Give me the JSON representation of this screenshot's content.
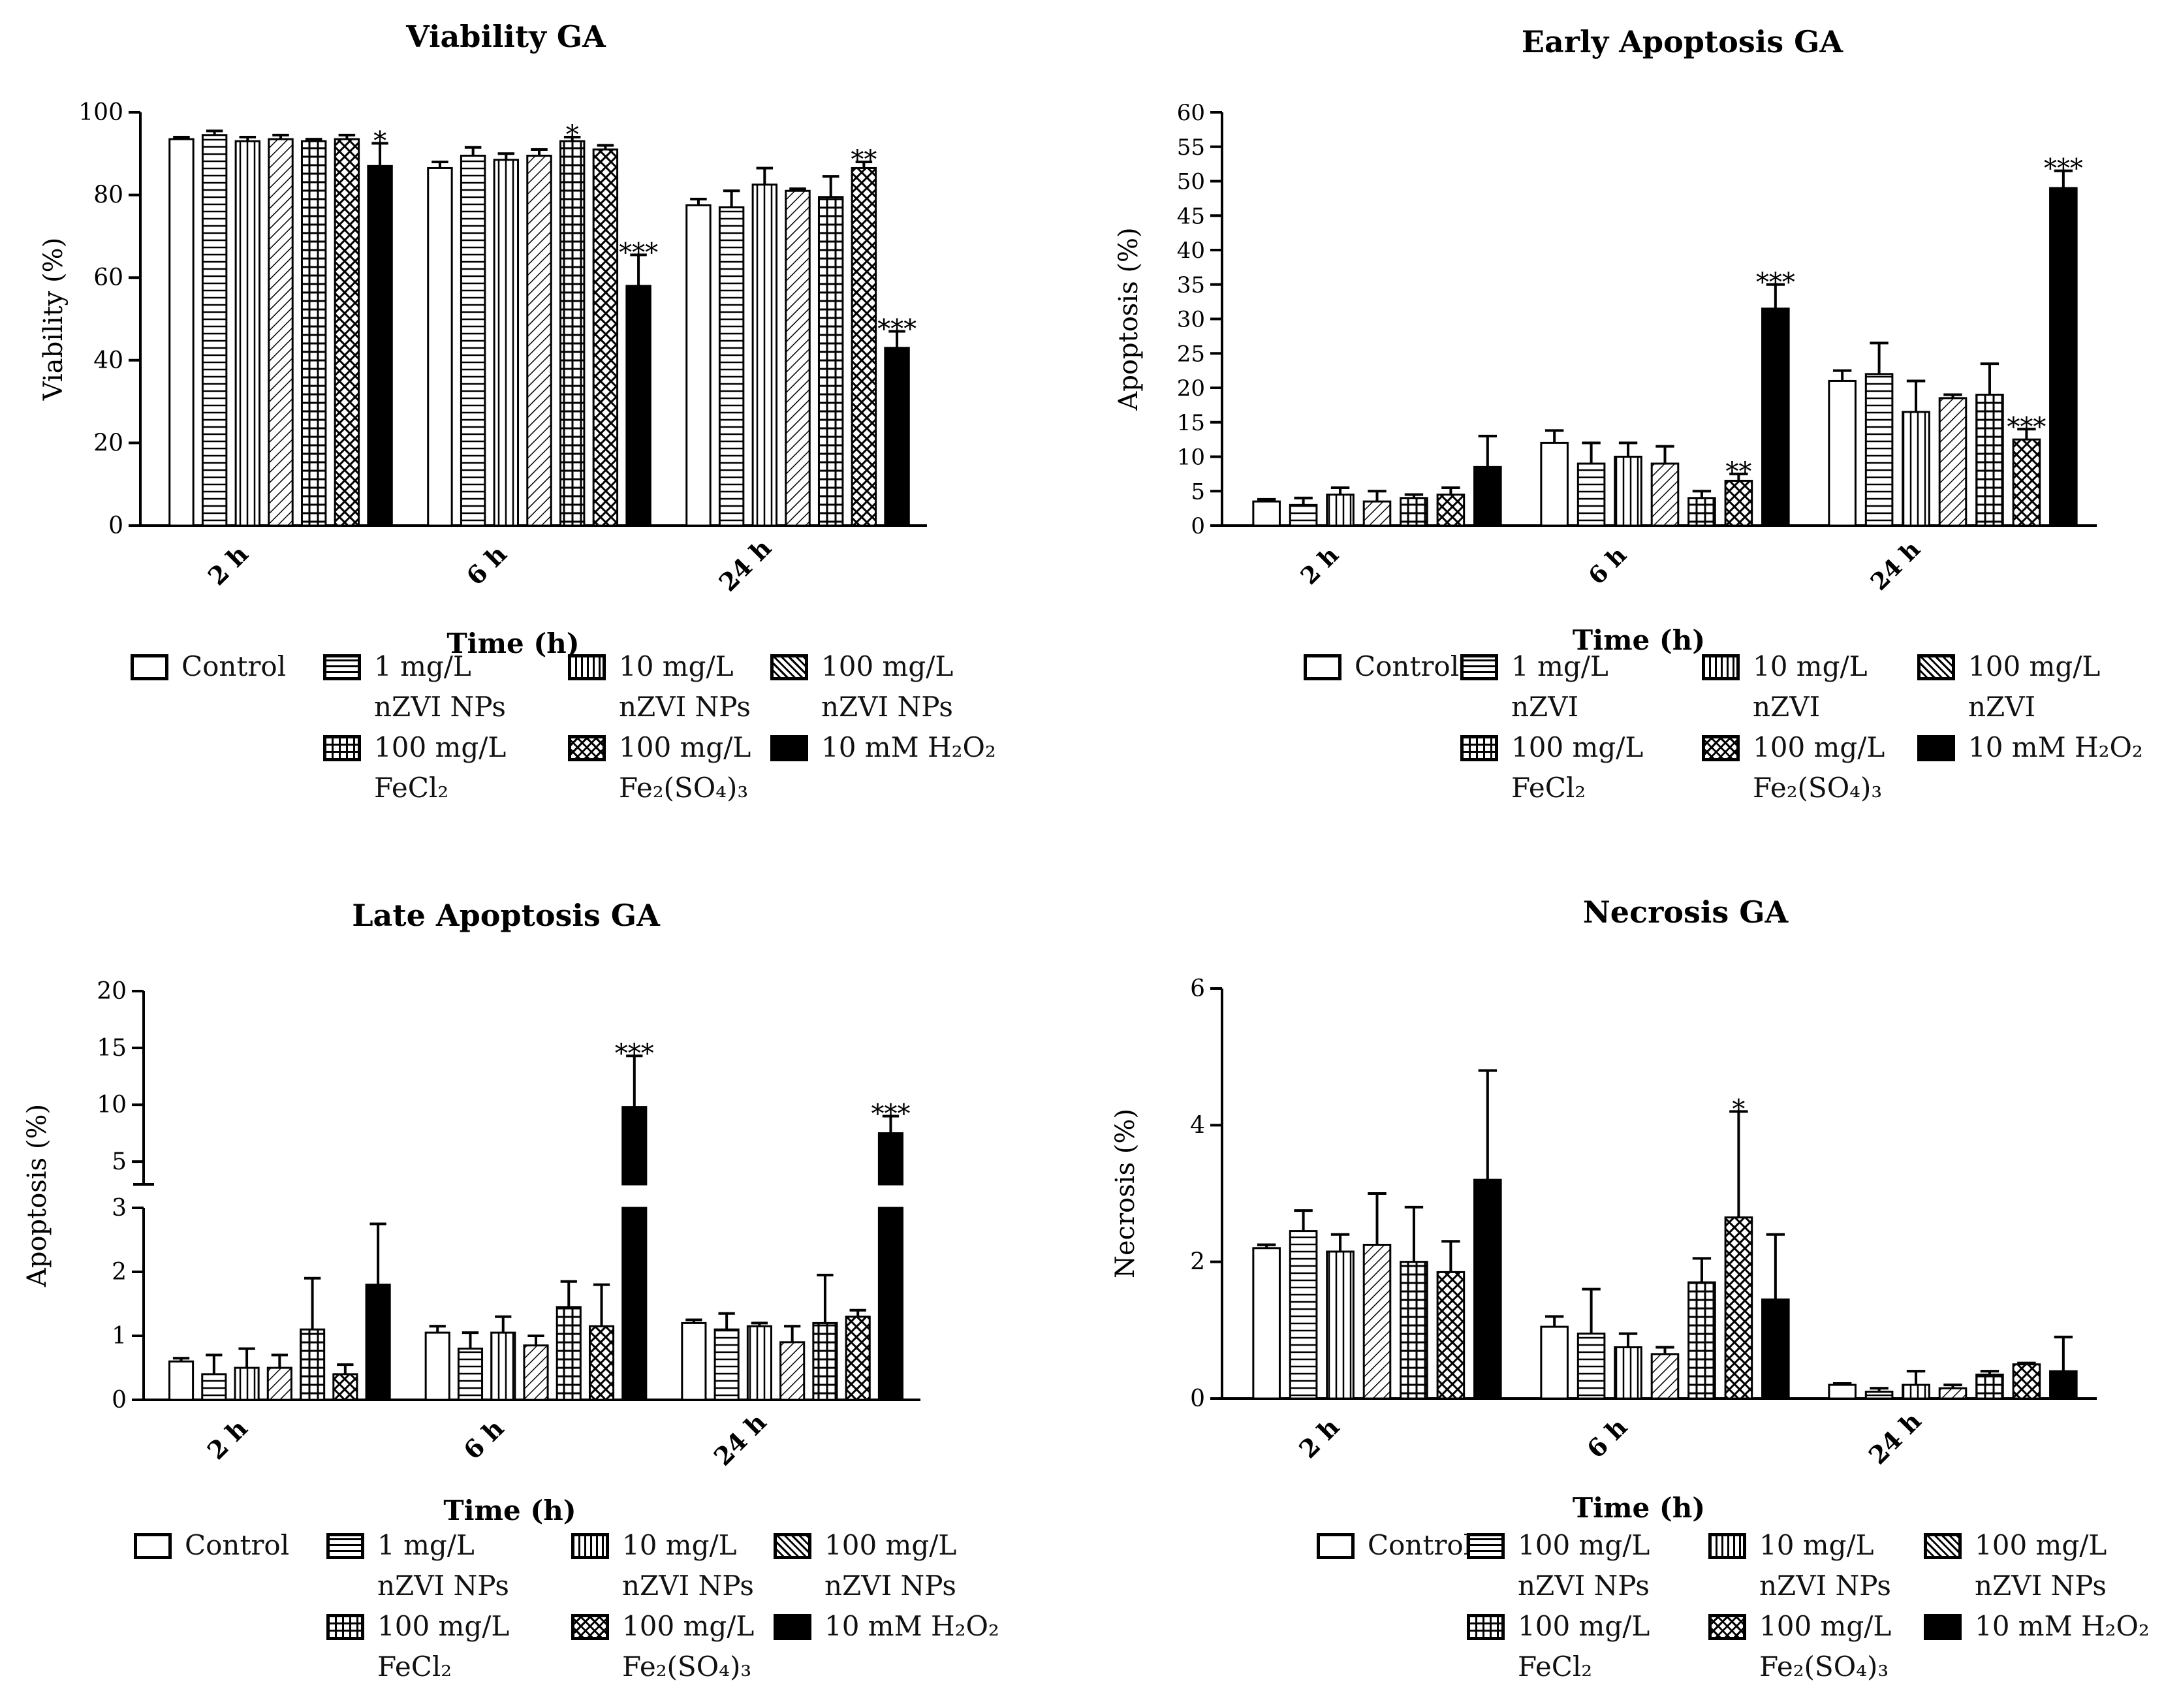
{
  "chart_data": [
    {
      "type": "bar",
      "title": "Viability GA",
      "xlabel": "Time (h)",
      "ylabel": "Viability (%)",
      "ylim": [
        0,
        100
      ],
      "yticks": [
        "0",
        "20",
        "40",
        "60",
        "80",
        "100"
      ],
      "categories": [
        "2 h",
        "6 h",
        "24 h"
      ],
      "series": [
        {
          "name": "Control",
          "values": [
            93.5,
            86.5,
            77.5
          ],
          "errors": [
            0.5,
            1.5,
            1.5
          ],
          "marks": [
            "",
            "",
            ""
          ]
        },
        {
          "name": "1 mg/L nZVI NPs",
          "values": [
            94.5,
            89.5,
            77.0
          ],
          "errors": [
            1.0,
            2.0,
            4.0
          ],
          "marks": [
            "",
            "",
            ""
          ]
        },
        {
          "name": "10 mg/L nZVI NPs",
          "values": [
            93.0,
            88.5,
            82.5
          ],
          "errors": [
            1.0,
            1.5,
            4.0
          ],
          "marks": [
            "",
            "",
            ""
          ]
        },
        {
          "name": "100 mg/L nZVI NPs",
          "values": [
            93.5,
            89.5,
            81.0
          ],
          "errors": [
            1.0,
            1.5,
            0.5
          ],
          "marks": [
            "",
            "",
            ""
          ]
        },
        {
          "name": "100 mg/L FeCl2",
          "values": [
            93.0,
            93.0,
            79.5
          ],
          "errors": [
            0.5,
            1.0,
            5.0
          ],
          "marks": [
            "",
            "*",
            ""
          ]
        },
        {
          "name": "100 mg/L Fe2(SO4)3",
          "values": [
            93.5,
            91.0,
            86.5
          ],
          "errors": [
            1.0,
            1.0,
            1.5
          ],
          "marks": [
            "",
            "",
            "**"
          ]
        },
        {
          "name": "10 mM H2O2",
          "values": [
            87.0,
            58.0,
            43.0
          ],
          "errors": [
            5.5,
            7.5,
            4.0
          ],
          "marks": [
            "*",
            "***",
            "***"
          ]
        }
      ],
      "legend": [
        {
          "label": "Control",
          "pattern": "open"
        },
        {
          "label": "1 mg/L\nnZVI NPs",
          "pattern": "hlines"
        },
        {
          "label": "10 mg/L\nnZVI NPs",
          "pattern": "vlines"
        },
        {
          "label": "100 mg/L\nnZVI NPs",
          "pattern": "diag"
        },
        {
          "label": "100 mg/L\nFeCl₂",
          "pattern": "grid"
        },
        {
          "label": "100 mg/L\nFe₂(SO₄)₃",
          "pattern": "cross"
        },
        {
          "label": "10 mM H₂O₂",
          "pattern": "solid"
        }
      ]
    },
    {
      "type": "bar",
      "title": "Early Apoptosis GA",
      "xlabel": "Time (h)",
      "ylabel": "Apoptosis (%)",
      "ylim": [
        0,
        60
      ],
      "yticks": [
        "0",
        "5",
        "10",
        "15",
        "20",
        "25",
        "30",
        "35",
        "40",
        "45",
        "50",
        "55",
        "60"
      ],
      "categories": [
        "2 h",
        "6 h",
        "24 h"
      ],
      "series": [
        {
          "name": "Control",
          "values": [
            3.5,
            12.0,
            21.0
          ],
          "errors": [
            0.3,
            1.8,
            1.5
          ],
          "marks": [
            "",
            "",
            ""
          ]
        },
        {
          "name": "1 mg/L nZVI",
          "values": [
            3.0,
            9.0,
            22.0
          ],
          "errors": [
            1.0,
            3.0,
            4.5
          ],
          "marks": [
            "",
            "",
            ""
          ]
        },
        {
          "name": "10 mg/L nZVI",
          "values": [
            4.5,
            10.0,
            16.5
          ],
          "errors": [
            1.0,
            2.0,
            4.5
          ],
          "marks": [
            "",
            "",
            ""
          ]
        },
        {
          "name": "100 mg/L nZVI",
          "values": [
            3.5,
            9.0,
            18.5
          ],
          "errors": [
            1.5,
            2.5,
            0.5
          ],
          "marks": [
            "",
            "",
            ""
          ]
        },
        {
          "name": "100 mg/L FeCl2",
          "values": [
            4.0,
            4.0,
            19.0
          ],
          "errors": [
            0.5,
            1.0,
            4.5
          ],
          "marks": [
            "",
            "",
            ""
          ]
        },
        {
          "name": "100 mg/L Fe2(SO4)3",
          "values": [
            4.5,
            6.5,
            12.5
          ],
          "errors": [
            1.0,
            1.0,
            1.5
          ],
          "marks": [
            "",
            "**",
            "***"
          ]
        },
        {
          "name": "10 mM H2O2",
          "values": [
            8.5,
            31.5,
            49.0
          ],
          "errors": [
            4.5,
            3.5,
            2.5
          ],
          "marks": [
            "",
            "***",
            "***"
          ]
        }
      ],
      "legend": [
        {
          "label": "Control",
          "pattern": "open"
        },
        {
          "label": "1 mg/L\nnZVI",
          "pattern": "hlines"
        },
        {
          "label": "10 mg/L\nnZVI",
          "pattern": "vlines"
        },
        {
          "label": "100 mg/L\nnZVI",
          "pattern": "diag"
        },
        {
          "label": "100 mg/L\nFeCl₂",
          "pattern": "grid"
        },
        {
          "label": "100 mg/L\nFe₂(SO₄)₃",
          "pattern": "cross"
        },
        {
          "label": "10 mM H₂O₂",
          "pattern": "solid"
        }
      ]
    },
    {
      "type": "bar",
      "title": "Late Apoptosis GA",
      "xlabel": "Time (h)",
      "ylabel": "Apoptosis (%)",
      "ylim": [
        0,
        20
      ],
      "axis_break": {
        "lower": [
          0,
          3
        ],
        "upper": [
          3,
          20
        ]
      },
      "yticks_lower": [
        "0",
        "1",
        "2",
        "3"
      ],
      "yticks_upper": [
        "5",
        "10",
        "15",
        "20"
      ],
      "categories": [
        "2 h",
        "6 h",
        "24 h"
      ],
      "series": [
        {
          "name": "Control",
          "values": [
            0.6,
            1.05,
            1.2
          ],
          "errors": [
            0.05,
            0.1,
            0.05
          ],
          "marks": [
            "",
            "",
            ""
          ]
        },
        {
          "name": "1 mg/L nZVI NPs",
          "values": [
            0.4,
            0.8,
            1.1
          ],
          "errors": [
            0.3,
            0.25,
            0.25
          ],
          "marks": [
            "",
            "",
            ""
          ]
        },
        {
          "name": "10 mg/L nZVI NPs",
          "values": [
            0.5,
            1.05,
            1.15
          ],
          "errors": [
            0.3,
            0.25,
            0.05
          ],
          "marks": [
            "",
            "",
            ""
          ]
        },
        {
          "name": "100 mg/L nZVI NPs",
          "values": [
            0.5,
            0.85,
            0.9
          ],
          "errors": [
            0.2,
            0.15,
            0.25
          ],
          "marks": [
            "",
            "",
            ""
          ]
        },
        {
          "name": "100 mg/L FeCl2",
          "values": [
            1.1,
            1.45,
            1.2
          ],
          "errors": [
            0.8,
            0.4,
            0.75
          ],
          "marks": [
            "",
            "",
            ""
          ]
        },
        {
          "name": "100 mg/L Fe2(SO4)3",
          "values": [
            0.4,
            1.15,
            1.3
          ],
          "errors": [
            0.15,
            0.65,
            0.1
          ],
          "marks": [
            "",
            "",
            ""
          ]
        },
        {
          "name": "10 mM H2O2",
          "values": [
            1.8,
            9.8,
            7.5
          ],
          "errors": [
            0.95,
            4.5,
            1.5
          ],
          "marks": [
            "",
            "***",
            "***"
          ]
        }
      ],
      "legend": [
        {
          "label": "Control",
          "pattern": "open"
        },
        {
          "label": "1 mg/L\nnZVI NPs",
          "pattern": "hlines"
        },
        {
          "label": "10 mg/L\nnZVI NPs",
          "pattern": "vlines"
        },
        {
          "label": "100 mg/L\nnZVI NPs",
          "pattern": "diag"
        },
        {
          "label": "100 mg/L\nFeCl₂",
          "pattern": "grid"
        },
        {
          "label": "100 mg/L\nFe₂(SO₄)₃",
          "pattern": "cross"
        },
        {
          "label": "10 mM H₂O₂",
          "pattern": "solid"
        }
      ]
    },
    {
      "type": "bar",
      "title": "Necrosis GA",
      "xlabel": "Time (h)",
      "ylabel": "Necrosis (%)",
      "ylim": [
        0,
        6
      ],
      "yticks": [
        "0",
        "2",
        "4",
        "6"
      ],
      "categories": [
        "2 h",
        "6 h",
        "24 h"
      ],
      "series": [
        {
          "name": "Control",
          "values": [
            2.2,
            1.05,
            0.2
          ],
          "errors": [
            0.05,
            0.15,
            0.02
          ],
          "marks": [
            "",
            "",
            ""
          ]
        },
        {
          "name": "100 mg/L nZVI NPs",
          "values": [
            2.45,
            0.95,
            0.1
          ],
          "errors": [
            0.3,
            0.65,
            0.05
          ],
          "marks": [
            "",
            "",
            ""
          ]
        },
        {
          "name": "10 mg/L nZVI NPs",
          "values": [
            2.15,
            0.75,
            0.2
          ],
          "errors": [
            0.25,
            0.2,
            0.2
          ],
          "marks": [
            "",
            "",
            ""
          ]
        },
        {
          "name": "100 mg/L nZVI NPs",
          "values": [
            2.25,
            0.65,
            0.15
          ],
          "errors": [
            0.75,
            0.1,
            0.05
          ],
          "marks": [
            "",
            "",
            ""
          ]
        },
        {
          "name": "100 mg/L FeCl2",
          "values": [
            2.0,
            1.7,
            0.35
          ],
          "errors": [
            0.8,
            0.35,
            0.05
          ],
          "marks": [
            "",
            "",
            ""
          ]
        },
        {
          "name": "100 mg/L Fe2(SO4)3",
          "values": [
            1.85,
            2.65,
            0.5
          ],
          "errors": [
            0.45,
            1.55,
            0.02
          ],
          "marks": [
            "",
            "*",
            ""
          ]
        },
        {
          "name": "10 mM H2O2",
          "values": [
            3.2,
            1.45,
            0.4
          ],
          "errors": [
            1.6,
            0.95,
            0.5
          ],
          "marks": [
            "",
            "",
            ""
          ]
        }
      ],
      "legend": [
        {
          "label": "Control",
          "pattern": "open"
        },
        {
          "label": "100 mg/L\nnZVI NPs",
          "pattern": "hlines"
        },
        {
          "label": "10 mg/L\nnZVI NPs",
          "pattern": "vlines"
        },
        {
          "label": "100 mg/L\nnZVI NPs",
          "pattern": "diag"
        },
        {
          "label": "100 mg/L\nFeCl₂",
          "pattern": "grid"
        },
        {
          "label": "100 mg/L\nFe₂(SO₄)₃",
          "pattern": "cross"
        },
        {
          "label": "10 mM H₂O₂",
          "pattern": "solid"
        }
      ]
    }
  ]
}
